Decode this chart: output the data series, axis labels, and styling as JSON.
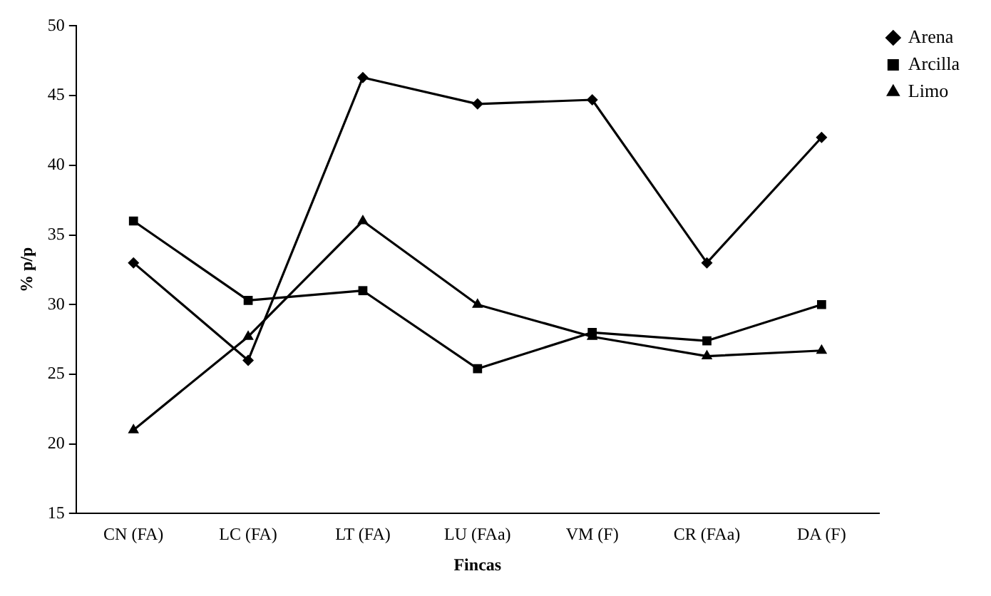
{
  "chart_data": {
    "type": "line",
    "xlabel": "Fincas",
    "ylabel": "% p/p",
    "categories": [
      "CN (FA)",
      "LC (FA)",
      "LT (FA)",
      "LU (FAa)",
      "VM (F)",
      "CR (FAa)",
      "DA (F)"
    ],
    "series": [
      {
        "name": "Arena",
        "color": "#000000",
        "marker": "diamond",
        "values": [
          33,
          26,
          46.3,
          44.4,
          44.7,
          33,
          42
        ]
      },
      {
        "name": "Arcilla",
        "color": "#000000",
        "marker": "square",
        "values": [
          36,
          30.3,
          31,
          25.4,
          28,
          27.4,
          30
        ]
      },
      {
        "name": "Limo",
        "color": "#000000",
        "marker": "triangle",
        "values": [
          21,
          27.7,
          36,
          30,
          27.7,
          26.3,
          26.7
        ]
      }
    ],
    "ylim": [
      15,
      50
    ],
    "yticks": [
      15,
      20,
      25,
      30,
      35,
      40,
      45,
      50
    ],
    "grid": false,
    "legend": "top right",
    "line_style": "solid"
  }
}
